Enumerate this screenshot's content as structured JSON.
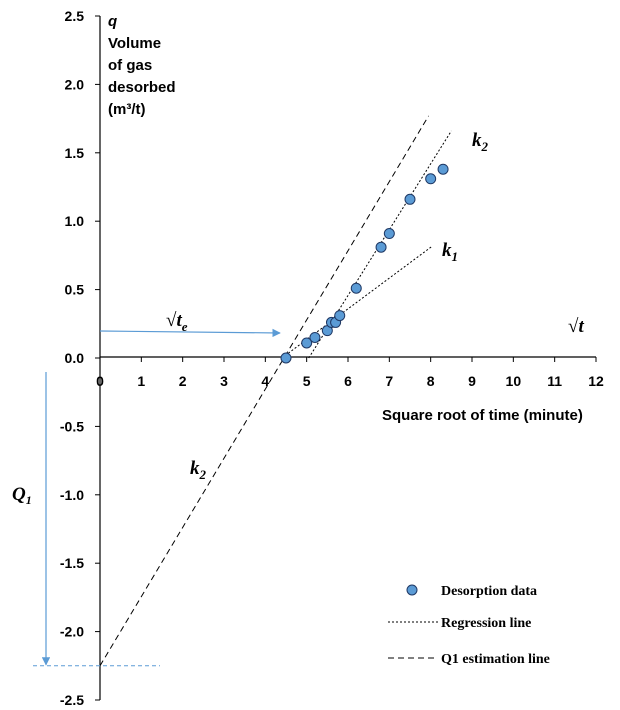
{
  "chart_data": {
    "type": "scatter",
    "xlabel": "Square root of time (minute)",
    "ylabel_lines": [
      "q",
      "Volume",
      "of gas",
      "desorbed",
      "(m³/t)"
    ],
    "xlim": [
      0,
      12
    ],
    "ylim": [
      -2.5,
      2.5
    ],
    "x_ticks": [
      0,
      1,
      2,
      3,
      4,
      5,
      6,
      7,
      8,
      9,
      10,
      11,
      12
    ],
    "y_ticks": [
      2.5,
      2.0,
      1.5,
      1.0,
      0.5,
      0.0,
      -0.5,
      -1.0,
      -1.5,
      -2.0,
      -2.5
    ],
    "y_tick_labels": [
      "2.5",
      "2.0",
      "1.5",
      "1.0",
      "0.5",
      "0.0",
      "-0.5",
      "-1.0",
      "-1.5",
      "-2.0",
      "-2.5"
    ],
    "grid": false,
    "legend_position": "bottom-right",
    "series": [
      {
        "name": "Desorption data",
        "kind": "points",
        "color": "#5b9bd5",
        "points": [
          [
            4.5,
            0.0
          ],
          [
            5.0,
            0.11
          ],
          [
            5.2,
            0.15
          ],
          [
            5.5,
            0.2
          ],
          [
            5.6,
            0.26
          ],
          [
            5.7,
            0.26
          ],
          [
            5.8,
            0.31
          ],
          [
            6.2,
            0.51
          ],
          [
            6.8,
            0.81
          ],
          [
            7.0,
            0.91
          ],
          [
            7.5,
            1.16
          ],
          [
            8.0,
            1.31
          ],
          [
            8.3,
            1.38
          ]
        ]
      },
      {
        "name": "Regression line",
        "kind": "line",
        "dash": "short",
        "segments": [
          {
            "label": "k1",
            "from": [
              4.4,
              0.0
            ],
            "to": [
              8.05,
              0.82
            ]
          },
          {
            "label": "k2",
            "from": [
              5.05,
              0.0
            ],
            "to": [
              8.5,
              1.66
            ]
          }
        ]
      },
      {
        "name": "Q1 estimation line",
        "kind": "line",
        "dash": "long",
        "segments": [
          {
            "label": "k2",
            "from": [
              0.0,
              -2.25
            ],
            "to": [
              7.95,
              1.77
            ]
          }
        ]
      }
    ],
    "annotations": {
      "k2_upper": "k",
      "k2_upper_sub": "2",
      "k1": "k",
      "k1_sub": "1",
      "k2_lower": "k",
      "k2_lower_sub": "2",
      "sqrt_te": "√",
      "sqrt_te_var": "t",
      "sqrt_te_sub": "e",
      "sqrt_t": "√",
      "sqrt_t_var": "t",
      "q1": "Q",
      "q1_sub": "1"
    },
    "guides": {
      "te_value": 4.5,
      "q1_value": -2.25,
      "color": "#5b9bd5"
    }
  }
}
